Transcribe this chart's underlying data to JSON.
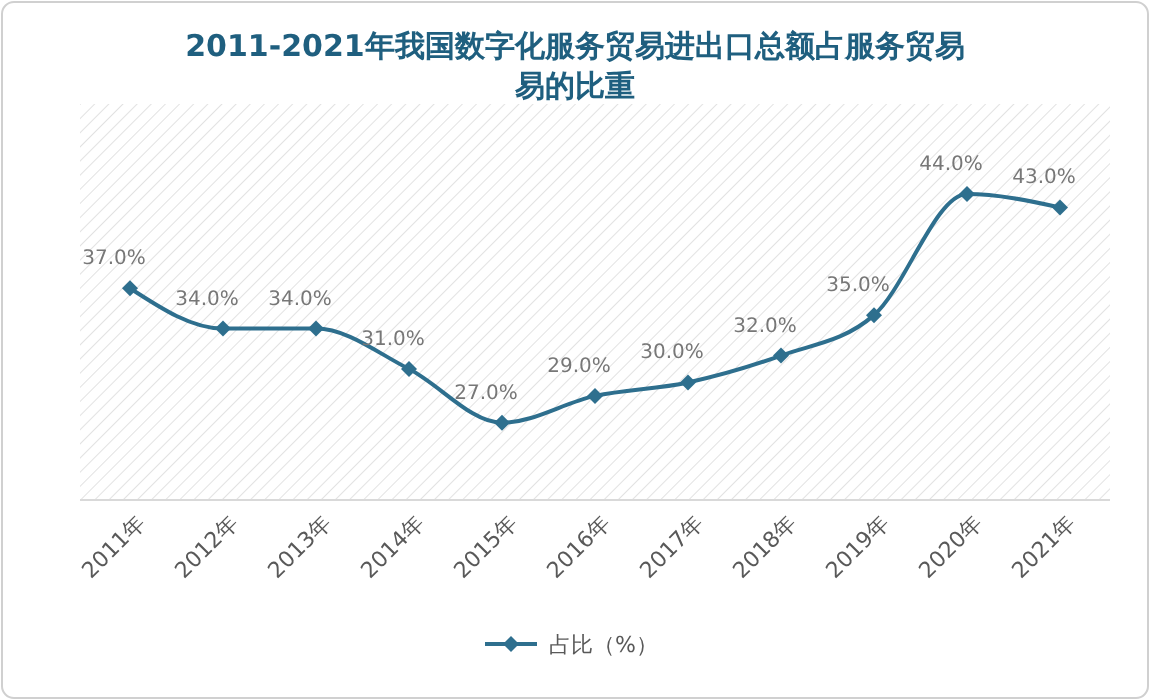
{
  "chart_data": {
    "type": "line",
    "title": "2011-2021年我国数字化服务贸易进出口总额占服务贸易易的比重",
    "categories": [
      "2011年",
      "2012年",
      "2013年",
      "2014年",
      "2015年",
      "2016年",
      "2017年",
      "2018年",
      "2019年",
      "2020年",
      "2021年"
    ],
    "series": [
      {
        "name": "占比（%）",
        "color": "#2e6f8e",
        "values": [
          37.0,
          34.0,
          34.0,
          31.0,
          27.0,
          29.0,
          30.0,
          32.0,
          35.0,
          44.0,
          43.0
        ],
        "value_labels": [
          "37.0%",
          "34.0%",
          "34.0%",
          "31.0%",
          "27.0%",
          "29.0%",
          "30.0%",
          "32.0%",
          "35.0%",
          "44.0%",
          "43.0%"
        ]
      }
    ],
    "marker": "diamond",
    "legend": "bottom",
    "grid": false
  }
}
